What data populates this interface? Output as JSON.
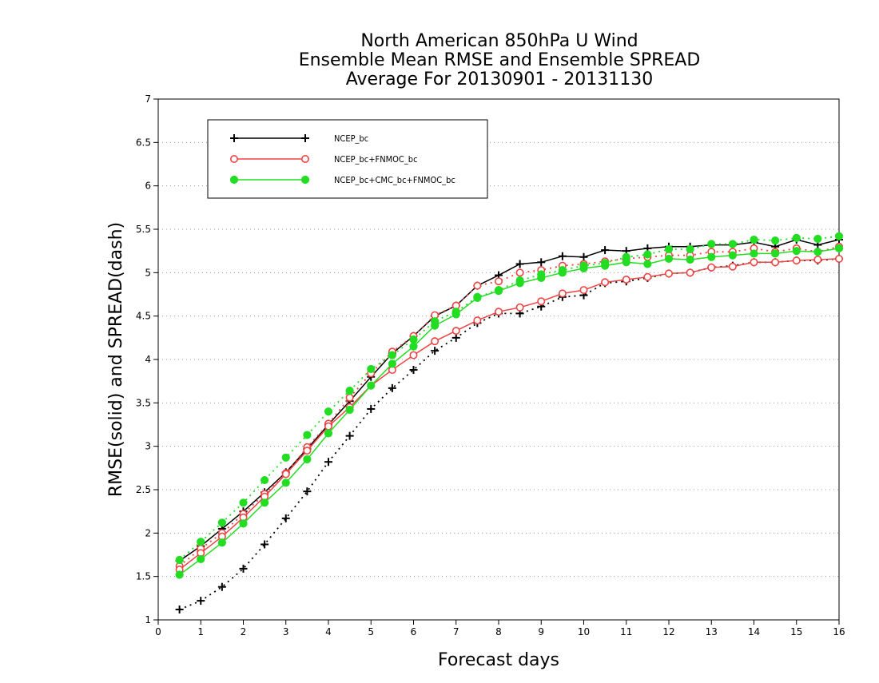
{
  "chart_data": {
    "type": "line",
    "title": [
      "North American 850hPa U Wind",
      "Ensemble Mean RMSE and Ensemble SPREAD",
      "Average For 20130901 - 20131130"
    ],
    "xlabel": "Forecast days",
    "ylabel": "RMSE(solid) and SPREAD(dash)",
    "xlim": [
      0,
      16
    ],
    "ylim": [
      1,
      7
    ],
    "xticks": [
      0,
      1,
      2,
      3,
      4,
      5,
      6,
      7,
      8,
      9,
      10,
      11,
      12,
      13,
      14,
      15,
      16
    ],
    "yticks": [
      1,
      1.5,
      2,
      2.5,
      3,
      3.5,
      4,
      4.5,
      5,
      5.5,
      6,
      6.5,
      7
    ],
    "ytick_labels": [
      "1",
      "1.5",
      "2",
      "2.5",
      "3",
      "3.5",
      "4",
      "4.5",
      "5",
      "5.5",
      "6",
      "6.5",
      "7"
    ],
    "grid": "horizontal dotted",
    "legend_position": "top-left",
    "x": [
      0.5,
      1,
      1.5,
      2,
      2.5,
      3,
      3.5,
      4,
      4.5,
      5,
      5.5,
      6,
      6.5,
      7,
      7.5,
      8,
      8.5,
      9,
      9.5,
      10,
      10.5,
      11,
      11.5,
      12,
      12.5,
      13,
      13.5,
      14,
      14.5,
      15,
      15.5,
      16
    ],
    "series": [
      {
        "name": "NCEP_bc",
        "color": "#000000",
        "marker": "plus",
        "rmse": [
          1.68,
          1.85,
          2.05,
          2.25,
          2.47,
          2.7,
          2.97,
          3.25,
          3.52,
          3.8,
          4.07,
          4.27,
          4.5,
          4.62,
          4.85,
          4.97,
          5.1,
          5.12,
          5.19,
          5.18,
          5.26,
          5.25,
          5.28,
          5.3,
          5.3,
          5.32,
          5.32,
          5.35,
          5.3,
          5.38,
          5.32,
          5.38
        ],
        "spread": [
          1.12,
          1.22,
          1.38,
          1.59,
          1.87,
          2.17,
          2.48,
          2.82,
          3.12,
          3.43,
          3.67,
          3.88,
          4.1,
          4.25,
          4.42,
          4.53,
          4.53,
          4.61,
          4.72,
          4.74,
          4.88,
          4.9,
          4.94,
          4.99,
          5.0,
          5.06,
          5.08,
          5.12,
          5.12,
          5.14,
          5.14,
          5.16
        ]
      },
      {
        "name": "NCEP_bc+FNMOC_bc",
        "color": "#ee4444",
        "marker": "open-circle",
        "rmse": [
          1.58,
          1.77,
          1.96,
          2.18,
          2.42,
          2.68,
          2.95,
          3.23,
          3.45,
          3.7,
          3.88,
          4.05,
          4.21,
          4.33,
          4.45,
          4.55,
          4.6,
          4.67,
          4.76,
          4.8,
          4.89,
          4.92,
          4.95,
          4.99,
          5.0,
          5.06,
          5.07,
          5.12,
          5.12,
          5.14,
          5.15,
          5.16
        ],
        "spread": [
          1.62,
          1.82,
          2.0,
          2.22,
          2.45,
          2.69,
          2.99,
          3.26,
          3.56,
          3.84,
          4.09,
          4.27,
          4.51,
          4.62,
          4.85,
          4.9,
          5.0,
          5.03,
          5.08,
          5.1,
          5.13,
          5.16,
          5.18,
          5.2,
          5.2,
          5.24,
          5.24,
          5.28,
          5.24,
          5.28,
          5.24,
          5.3
        ]
      },
      {
        "name": "NCEP_bc+CMC_bc+FNMOC_bc",
        "color": "#22dd22",
        "marker": "filled-circle",
        "rmse": [
          1.52,
          1.7,
          1.89,
          2.11,
          2.35,
          2.58,
          2.85,
          3.15,
          3.42,
          3.7,
          3.95,
          4.15,
          4.39,
          4.52,
          4.71,
          4.79,
          4.88,
          4.94,
          5.0,
          5.05,
          5.08,
          5.12,
          5.1,
          5.16,
          5.15,
          5.18,
          5.2,
          5.22,
          5.22,
          5.25,
          5.24,
          5.28
        ],
        "spread": [
          1.69,
          1.9,
          2.12,
          2.35,
          2.61,
          2.87,
          3.13,
          3.4,
          3.64,
          3.89,
          4.05,
          4.23,
          4.44,
          4.55,
          4.72,
          4.8,
          4.91,
          4.98,
          5.03,
          5.08,
          5.11,
          5.18,
          5.21,
          5.27,
          5.27,
          5.33,
          5.33,
          5.38,
          5.37,
          5.4,
          5.39,
          5.42
        ]
      }
    ]
  }
}
